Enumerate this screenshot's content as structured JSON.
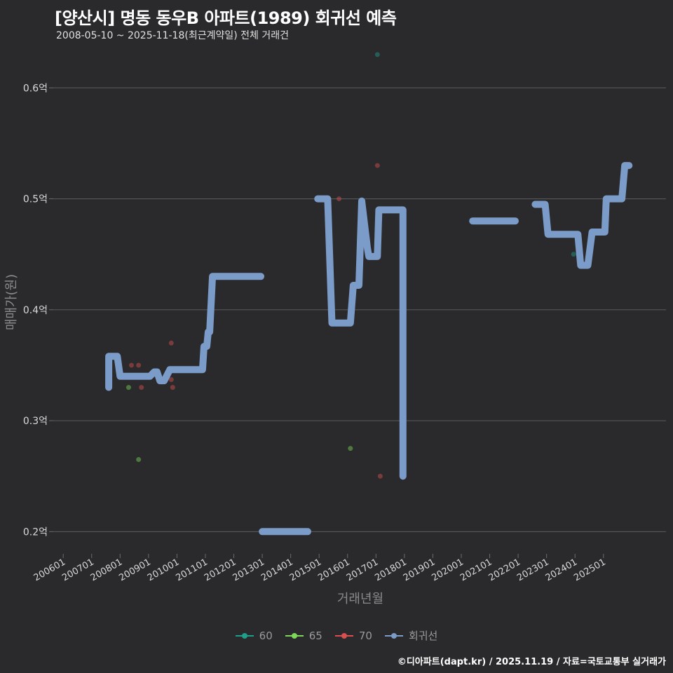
{
  "title": "[양산시] 명동 동우B 아파트(1989) 회귀선 예측",
  "subtitle": "2008-05-10 ~ 2025-11-18(최근계약일) 전체 거래건",
  "credit": "©디아파트(dapt.kr) / 2025.11.19 / 자료=국토교통부 실거래가",
  "chart_data": {
    "type": "line",
    "xlabel": "거래년월",
    "ylabel": "매매가(원)",
    "x_unit": "years since 2006-01",
    "xlim": [
      -0.35,
      21.2
    ],
    "ylim": [
      0.18,
      0.64
    ],
    "y_ticks": [
      {
        "value": 0.2,
        "label": "0.2억"
      },
      {
        "value": 0.3,
        "label": "0.3억"
      },
      {
        "value": 0.4,
        "label": "0.4억"
      },
      {
        "value": 0.5,
        "label": "0.5억"
      },
      {
        "value": 0.6,
        "label": "0.6억"
      }
    ],
    "x_ticks": [
      {
        "value": 0,
        "label": "200601"
      },
      {
        "value": 1,
        "label": "200701"
      },
      {
        "value": 2,
        "label": "200801"
      },
      {
        "value": 3,
        "label": "200901"
      },
      {
        "value": 4,
        "label": "201001"
      },
      {
        "value": 5,
        "label": "201101"
      },
      {
        "value": 6,
        "label": "201201"
      },
      {
        "value": 7,
        "label": "201301"
      },
      {
        "value": 8,
        "label": "201401"
      },
      {
        "value": 9,
        "label": "201501"
      },
      {
        "value": 10,
        "label": "201601"
      },
      {
        "value": 11,
        "label": "201701"
      },
      {
        "value": 12,
        "label": "201801"
      },
      {
        "value": 13,
        "label": "201901"
      },
      {
        "value": 14,
        "label": "202001"
      },
      {
        "value": 15,
        "label": "202101"
      },
      {
        "value": 16,
        "label": "202201"
      },
      {
        "value": 17,
        "label": "202301"
      },
      {
        "value": 18,
        "label": "202401"
      },
      {
        "value": 19,
        "label": "202501"
      }
    ],
    "legend": [
      {
        "name": "60",
        "color": "#1f9e89"
      },
      {
        "name": "65",
        "color": "#7dd85a"
      },
      {
        "name": "70",
        "color": "#d94f4f"
      },
      {
        "name": "회귀선",
        "color": "#7b9bc8"
      }
    ],
    "scatter": [
      {
        "group": "65",
        "x": 2.3,
        "y": 0.33
      },
      {
        "group": "65",
        "x": 2.65,
        "y": 0.265
      },
      {
        "group": "70",
        "x": 2.4,
        "y": 0.35
      },
      {
        "group": "70",
        "x": 2.65,
        "y": 0.35
      },
      {
        "group": "70",
        "x": 2.75,
        "y": 0.33
      },
      {
        "group": "70",
        "x": 3.8,
        "y": 0.37
      },
      {
        "group": "70",
        "x": 3.8,
        "y": 0.337
      },
      {
        "group": "70",
        "x": 3.85,
        "y": 0.33
      },
      {
        "group": "70",
        "x": 9.7,
        "y": 0.5
      },
      {
        "group": "65",
        "x": 10.1,
        "y": 0.275
      },
      {
        "group": "60",
        "x": 11.05,
        "y": 0.63
      },
      {
        "group": "70",
        "x": 11.05,
        "y": 0.53
      },
      {
        "group": "70",
        "x": 11.15,
        "y": 0.25
      },
      {
        "group": "60",
        "x": 17.95,
        "y": 0.45
      },
      {
        "group": "70",
        "x": 18.4,
        "y": 0.44
      }
    ],
    "regression": [
      [
        [
          1.6,
          0.33
        ],
        [
          1.6,
          0.358
        ],
        [
          1.7,
          0.358
        ],
        [
          1.9,
          0.358
        ],
        [
          2.0,
          0.34
        ],
        [
          3.05,
          0.34
        ],
        [
          3.2,
          0.344
        ],
        [
          3.3,
          0.344
        ],
        [
          3.4,
          0.336
        ],
        [
          3.55,
          0.336
        ],
        [
          3.75,
          0.346
        ],
        [
          4.9,
          0.346
        ],
        [
          4.95,
          0.367
        ],
        [
          5.05,
          0.367
        ],
        [
          5.1,
          0.38
        ],
        [
          5.15,
          0.38
        ],
        [
          5.25,
          0.43
        ],
        [
          6.95,
          0.43
        ]
      ],
      [
        [
          7.0,
          0.2
        ],
        [
          8.6,
          0.2
        ]
      ],
      [
        [
          8.95,
          0.5
        ],
        [
          9.3,
          0.5
        ],
        [
          9.45,
          0.388
        ],
        [
          10.1,
          0.388
        ],
        [
          10.2,
          0.422
        ],
        [
          10.4,
          0.422
        ],
        [
          10.5,
          0.498
        ],
        [
          10.7,
          0.455
        ],
        [
          10.75,
          0.448
        ],
        [
          11.05,
          0.448
        ],
        [
          11.1,
          0.49
        ],
        [
          11.8,
          0.49
        ],
        [
          11.95,
          0.49
        ],
        [
          11.95,
          0.25
        ]
      ],
      [
        [
          14.4,
          0.48
        ],
        [
          15.9,
          0.48
        ]
      ],
      [
        [
          16.6,
          0.495
        ],
        [
          16.95,
          0.495
        ],
        [
          17.05,
          0.468
        ],
        [
          18.1,
          0.468
        ],
        [
          18.2,
          0.44
        ],
        [
          18.45,
          0.44
        ],
        [
          18.6,
          0.47
        ],
        [
          19.05,
          0.47
        ],
        [
          19.1,
          0.5
        ],
        [
          19.65,
          0.5
        ],
        [
          19.75,
          0.53
        ],
        [
          19.9,
          0.53
        ]
      ]
    ]
  }
}
